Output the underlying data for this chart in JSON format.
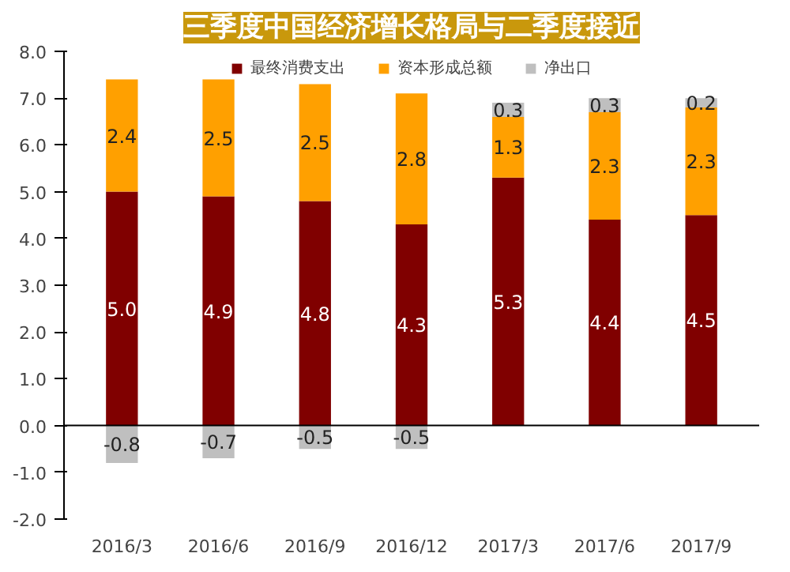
{
  "chart_data": {
    "type": "bar",
    "title": "三季度中国经济增长格局与二季度接近",
    "categories": [
      "2016/3",
      "2016/6",
      "2016/9",
      "2016/12",
      "2017/3",
      "2017/6",
      "2017/9"
    ],
    "stacked": true,
    "series": [
      {
        "name": "最终消费支出",
        "color": "#800000",
        "values": [
          5.0,
          4.9,
          4.8,
          4.3,
          5.3,
          4.4,
          4.5
        ],
        "value_labels": [
          "5.0",
          "4.9",
          "4.8",
          "4.3",
          "5.3",
          "4.4",
          "4.5"
        ]
      },
      {
        "name": "资本形成总额",
        "color": "#ffa000",
        "values": [
          2.4,
          2.5,
          2.5,
          2.8,
          1.3,
          2.3,
          2.3
        ],
        "value_labels": [
          "2.4",
          "2.5",
          "2.5",
          "2.8",
          "1.3",
          "2.3",
          "2.3"
        ]
      },
      {
        "name": "净出口",
        "color": "#bfbfbf",
        "values": [
          -0.8,
          -0.7,
          -0.5,
          -0.5,
          0.3,
          0.3,
          0.2
        ],
        "value_labels": [
          "-0.8",
          "-0.7",
          "-0.5",
          "-0.5",
          "0.3",
          "0.3",
          "0.2"
        ]
      }
    ],
    "ylim": [
      -2.0,
      8.0
    ],
    "yticks": [
      {
        "value": -2,
        "label": "-2.0"
      },
      {
        "value": -1,
        "label": "-1.0"
      },
      {
        "value": 0,
        "label": "0.0"
      },
      {
        "value": 1,
        "label": "1.0"
      },
      {
        "value": 2,
        "label": "2.0"
      },
      {
        "value": 3,
        "label": "3.0"
      },
      {
        "value": 4,
        "label": "4.0"
      },
      {
        "value": 5,
        "label": "5.0"
      },
      {
        "value": 6,
        "label": "6.0"
      },
      {
        "value": 7,
        "label": "7.0"
      },
      {
        "value": 8,
        "label": "8.0"
      }
    ],
    "legend": "top"
  }
}
